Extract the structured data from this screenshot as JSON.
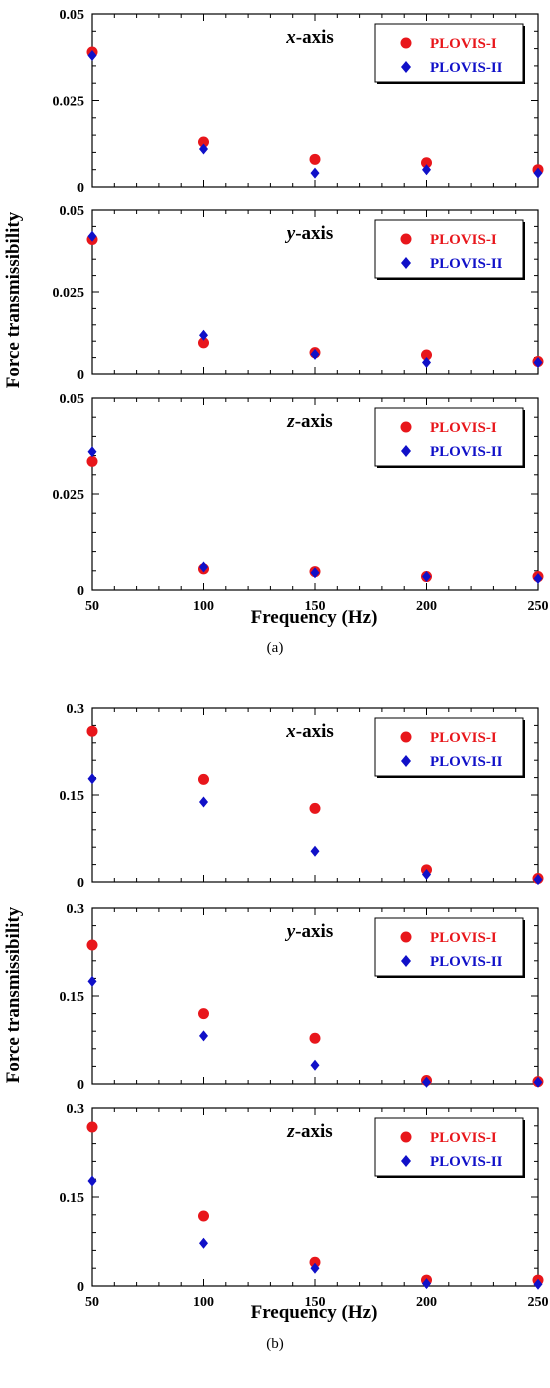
{
  "figure": {
    "ylabel": "Force transmissibility",
    "xlabel": "Frequency (Hz)",
    "subfigures": [
      {
        "caption_prefix": "(",
        "caption_letter": "a",
        "caption_suffix": ")"
      },
      {
        "caption_prefix": "(",
        "caption_letter": "b",
        "caption_suffix": ")"
      }
    ]
  },
  "colors": {
    "plovis1": "#e8161b",
    "plovis2": "#1010c8"
  },
  "chart_data": [
    {
      "type": "scatter",
      "panel": "a",
      "axis_letter": "x",
      "axis_suffix": "-axis",
      "x": [
        50,
        100,
        150,
        200,
        250
      ],
      "xticks": [
        "50",
        "100",
        "150",
        "200",
        "250"
      ],
      "yticks": [
        "0",
        "0.025",
        "0.05"
      ],
      "ylim": [
        0,
        0.05
      ],
      "xlim": [
        50,
        250
      ],
      "series": [
        {
          "name": "PLOVIS-I",
          "marker": "circle",
          "values": [
            0.039,
            0.013,
            0.008,
            0.007,
            0.005
          ]
        },
        {
          "name": "PLOVIS-II",
          "marker": "diamond",
          "values": [
            0.038,
            0.011,
            0.004,
            0.005,
            0.004
          ]
        }
      ],
      "legend": "top-right",
      "grid": false
    },
    {
      "type": "scatter",
      "panel": "a",
      "axis_letter": "y",
      "axis_suffix": "-axis",
      "x": [
        50,
        100,
        150,
        200,
        250
      ],
      "xticks": [
        "50",
        "100",
        "150",
        "200",
        "250"
      ],
      "yticks": [
        "0",
        "0.025",
        "0.05"
      ],
      "ylim": [
        0,
        0.05
      ],
      "xlim": [
        50,
        250
      ],
      "series": [
        {
          "name": "PLOVIS-I",
          "marker": "circle",
          "values": [
            0.041,
            0.0095,
            0.0065,
            0.0058,
            0.0038
          ]
        },
        {
          "name": "PLOVIS-II",
          "marker": "diamond",
          "values": [
            0.042,
            0.0118,
            0.006,
            0.0035,
            0.0035
          ]
        }
      ],
      "legend": "top-right",
      "grid": false
    },
    {
      "type": "scatter",
      "panel": "a",
      "axis_letter": "z",
      "axis_suffix": "-axis",
      "x": [
        50,
        100,
        150,
        200,
        250
      ],
      "xticks": [
        "50",
        "100",
        "150",
        "200",
        "250"
      ],
      "yticks": [
        "0",
        "0.025",
        "0.05"
      ],
      "ylim": [
        0,
        0.05
      ],
      "xlim": [
        50,
        250
      ],
      "series": [
        {
          "name": "PLOVIS-I",
          "marker": "circle",
          "values": [
            0.0335,
            0.0055,
            0.0048,
            0.0035,
            0.0035
          ]
        },
        {
          "name": "PLOVIS-II",
          "marker": "diamond",
          "values": [
            0.036,
            0.006,
            0.0045,
            0.0035,
            0.003
          ]
        }
      ],
      "legend": "top-right",
      "grid": false
    },
    {
      "type": "scatter",
      "panel": "b",
      "axis_letter": "x",
      "axis_suffix": "-axis",
      "x": [
        50,
        100,
        150,
        200,
        250
      ],
      "xticks": [
        "50",
        "100",
        "150",
        "200",
        "250"
      ],
      "yticks": [
        "0",
        "0.15",
        "0.3"
      ],
      "ylim": [
        0,
        0.3
      ],
      "xlim": [
        50,
        250
      ],
      "series": [
        {
          "name": "PLOVIS-I",
          "marker": "circle",
          "values": [
            0.26,
            0.177,
            0.127,
            0.021,
            0.006
          ]
        },
        {
          "name": "PLOVIS-II",
          "marker": "diamond",
          "values": [
            0.178,
            0.138,
            0.053,
            0.013,
            0.004
          ]
        }
      ],
      "legend": "top-right",
      "grid": false
    },
    {
      "type": "scatter",
      "panel": "b",
      "axis_letter": "y",
      "axis_suffix": "-axis",
      "x": [
        50,
        100,
        150,
        200,
        250
      ],
      "xticks": [
        "50",
        "100",
        "150",
        "200",
        "250"
      ],
      "yticks": [
        "0",
        "0.15",
        "0.3"
      ],
      "ylim": [
        0,
        0.3
      ],
      "xlim": [
        50,
        250
      ],
      "series": [
        {
          "name": "PLOVIS-I",
          "marker": "circle",
          "values": [
            0.237,
            0.12,
            0.078,
            0.006,
            0.004
          ]
        },
        {
          "name": "PLOVIS-II",
          "marker": "diamond",
          "values": [
            0.175,
            0.082,
            0.032,
            0.003,
            0.003
          ]
        }
      ],
      "legend": "top-right",
      "grid": false
    },
    {
      "type": "scatter",
      "panel": "b",
      "axis_letter": "z",
      "axis_suffix": "-axis",
      "x": [
        50,
        100,
        150,
        200,
        250
      ],
      "xticks": [
        "50",
        "100",
        "150",
        "200",
        "250"
      ],
      "yticks": [
        "0",
        "0.15",
        "0.3"
      ],
      "ylim": [
        0,
        0.3
      ],
      "xlim": [
        50,
        250
      ],
      "series": [
        {
          "name": "PLOVIS-I",
          "marker": "circle",
          "values": [
            0.268,
            0.118,
            0.04,
            0.01,
            0.01
          ]
        },
        {
          "name": "PLOVIS-II",
          "marker": "diamond",
          "values": [
            0.177,
            0.072,
            0.03,
            0.004,
            0.003
          ]
        }
      ],
      "legend": "top-right",
      "grid": false
    }
  ]
}
